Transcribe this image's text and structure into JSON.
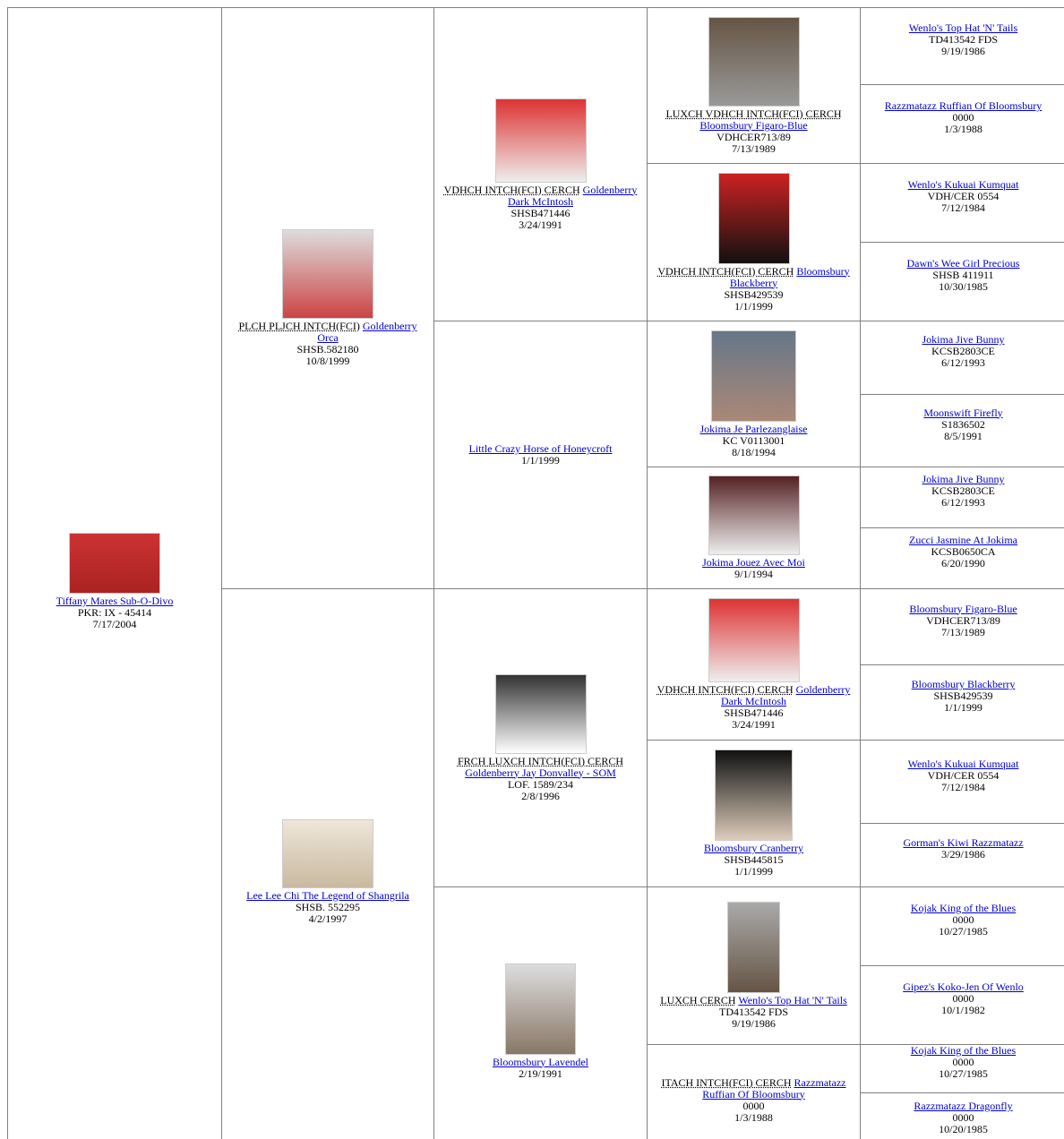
{
  "columns": [
    [
      {
        "name": "Tiffany Mares Sub-O-Divo",
        "reg": "PKR: IX - 45414",
        "date": "7/17/2004"
      }
    ],
    [
      {
        "titles": "PLCH PLJCH INTCH(FCI)",
        "name": "Goldenberry Orca",
        "reg": "SHSB.582180",
        "date": "10/8/1999"
      },
      {
        "name": "Lee Lee Chi The Legend of Shangrila",
        "reg": "SHSB. 552295",
        "date": "4/2/1997"
      }
    ],
    [
      {
        "titles": "VDHCH INTCH(FCI) CERCH",
        "name": "Goldenberry Dark McIntosh",
        "reg": "SHSB471446",
        "date": "3/24/1991"
      },
      {
        "name": "Little Crazy Horse of Honeycroft",
        "date": "1/1/1999"
      },
      {
        "titles": "FRCH LUXCH INTCH(FCI) CERCH",
        "name": "Goldenberry Jay Donvalley - SOM",
        "reg": "LOF. 1589/234",
        "date": "2/8/1996"
      },
      {
        "name": "Bloomsbury Lavendel",
        "date": "2/19/1991"
      }
    ],
    [
      {
        "titles": "LUXCH VDHCH INTCH(FCI) CERCH",
        "name": "Bloomsbury Figaro-Blue",
        "reg": "VDHCER713/89",
        "date": "7/13/1989"
      },
      {
        "titles": "VDHCH INTCH(FCI) CERCH",
        "name": "Bloomsbury Blackberry",
        "reg": "SHSB429539",
        "date": "1/1/1999"
      },
      {
        "name": "Jokima Je Parlezanglaise",
        "reg": "KC V0113001",
        "date": "8/18/1994"
      },
      {
        "name": "Jokima Jouez Avec Moi",
        "date": "9/1/1994"
      },
      {
        "titles": "VDHCH INTCH(FCI) CERCH",
        "name": "Goldenberry Dark McIntosh",
        "reg": "SHSB471446",
        "date": "3/24/1991"
      },
      {
        "name": "Bloomsbury Cranberry",
        "reg": "SHSB445815",
        "date": "1/1/1999"
      },
      {
        "titles": "LUXCH CERCH",
        "name": "Wenlo's Top Hat 'N' Tails",
        "reg": "TD413542 FDS",
        "date": "9/19/1986"
      },
      {
        "titles": "ITACH INTCH(FCI) CERCH",
        "name": "Razzmatazz Ruffian Of Bloomsbury",
        "reg": "0000",
        "date": "1/3/1988"
      }
    ],
    [
      {
        "name": "Wenlo's Top Hat 'N' Tails",
        "reg": "TD413542 FDS",
        "date": "9/19/1986"
      },
      {
        "name": "Razzmatazz Ruffian Of Bloomsbury",
        "reg": "0000",
        "date": "1/3/1988"
      },
      {
        "name": "Wenlo's Kukuai Kumquat",
        "reg": "VDH/CER 0554",
        "date": "7/12/1984"
      },
      {
        "name": "Dawn's Wee Girl Precious",
        "reg": "SHSB 411911",
        "date": "10/30/1985"
      },
      {
        "name": "Jokima Jive Bunny",
        "reg": "KCSB2803CE",
        "date": "6/12/1993"
      },
      {
        "name": "Moonswift Firefly",
        "reg": "S1836502",
        "date": "8/5/1991"
      },
      {
        "name": "Jokima Jive Bunny",
        "reg": "KCSB2803CE",
        "date": "6/12/1993"
      },
      {
        "name": "Zucci Jasmine At Jokima",
        "reg": "KCSB0650CA",
        "date": "6/20/1990"
      },
      {
        "name": "Bloomsbury Figaro-Blue",
        "reg": "VDHCER713/89",
        "date": "7/13/1989"
      },
      {
        "name": "Bloomsbury Blackberry",
        "reg": "SHSB429539",
        "date": "1/1/1999"
      },
      {
        "name": "Wenlo's Kukuai Kumquat",
        "reg": "VDH/CER 0554",
        "date": "7/12/1984"
      },
      {
        "name": "Gorman's Kiwi Razzmatazz",
        "date": "3/29/1986"
      },
      {
        "name": "Kojak King of the Blues",
        "reg": "0000",
        "date": "10/27/1985"
      },
      {
        "name": "Gipez's Koko-Jen Of Wenlo",
        "reg": "0000",
        "date": "10/1/1982"
      },
      {
        "name": "Kojak King of the Blues",
        "reg": "0000",
        "date": "10/27/1985"
      },
      {
        "name": "Razzmatazz Dragonfly",
        "reg": "0000",
        "date": "10/20/1985"
      }
    ]
  ]
}
